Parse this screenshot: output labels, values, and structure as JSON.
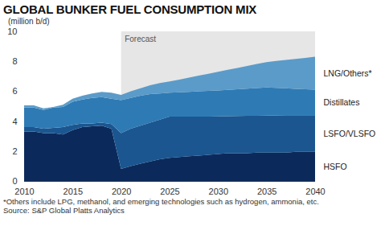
{
  "chart_data": {
    "type": "area",
    "stacked": true,
    "title": "GLOBAL BUNKER FUEL CONSUMPTION MIX",
    "subtitle": "(million b/d)",
    "notes": [
      "*Others include LPG, methanol, and emerging technologies such as hydrogen, ammonia, etc.",
      "Source: S&P Global Platts Analytics"
    ],
    "shaded_region": {
      "label": "Forecast",
      "x": [
        2020,
        2040
      ]
    },
    "x": [
      2010,
      2011,
      2012,
      2013,
      2014,
      2015,
      2016,
      2017,
      2018,
      2019,
      2020,
      2021,
      2022,
      2023,
      2024,
      2025,
      2026,
      2027,
      2028,
      2029,
      2030,
      2031,
      2032,
      2033,
      2034,
      2035,
      2036,
      2037,
      2038,
      2039,
      2040
    ],
    "xlim": [
      2010,
      2040
    ],
    "xticks": [
      2010,
      2015,
      2020,
      2025,
      2030,
      2035,
      2040
    ],
    "ylim": [
      0,
      10
    ],
    "yticks": [
      0,
      2,
      4,
      6,
      8,
      10
    ],
    "grid": false,
    "series": [
      {
        "name": "HSFO",
        "color": "#0b2a5b",
        "values": [
          3.3,
          3.3,
          3.2,
          3.2,
          3.1,
          3.4,
          3.6,
          3.65,
          3.7,
          3.5,
          0.8,
          1.0,
          1.15,
          1.3,
          1.45,
          1.55,
          1.6,
          1.65,
          1.7,
          1.75,
          1.8,
          1.85,
          1.85,
          1.85,
          1.9,
          1.9,
          1.9,
          1.9,
          1.95,
          1.95,
          1.95
        ]
      },
      {
        "name": "LSFO/VLSFO",
        "color": "#1b5690",
        "values": [
          0.3,
          0.3,
          0.3,
          0.35,
          0.5,
          0.35,
          0.25,
          0.2,
          0.2,
          0.3,
          2.4,
          2.5,
          2.55,
          2.6,
          2.65,
          2.75,
          2.7,
          2.65,
          2.6,
          2.55,
          2.52,
          2.48,
          2.49,
          2.5,
          2.46,
          2.47,
          2.48,
          2.49,
          2.45,
          2.45,
          2.45
        ]
      },
      {
        "name": "Distillates",
        "color": "#2e7ab4",
        "values": [
          1.3,
          1.3,
          1.25,
          1.35,
          1.35,
          1.55,
          1.6,
          1.7,
          1.7,
          1.7,
          2.2,
          2.05,
          2.0,
          1.9,
          1.75,
          1.6,
          1.63,
          1.66,
          1.69,
          1.72,
          1.73,
          1.76,
          1.79,
          1.82,
          1.85,
          1.88,
          1.84,
          1.8,
          1.76,
          1.73,
          1.7
        ]
      },
      {
        "name": "LNG/Others*",
        "color": "#5b9bc9",
        "values": [
          0.15,
          0.15,
          0.1,
          0.05,
          0.15,
          0.2,
          0.25,
          0.3,
          0.35,
          0.4,
          0.35,
          0.45,
          0.5,
          0.6,
          0.7,
          0.75,
          0.85,
          0.95,
          1.05,
          1.15,
          1.25,
          1.34,
          1.43,
          1.52,
          1.61,
          1.7,
          1.8,
          1.9,
          2.0,
          2.1,
          2.2
        ]
      }
    ]
  }
}
